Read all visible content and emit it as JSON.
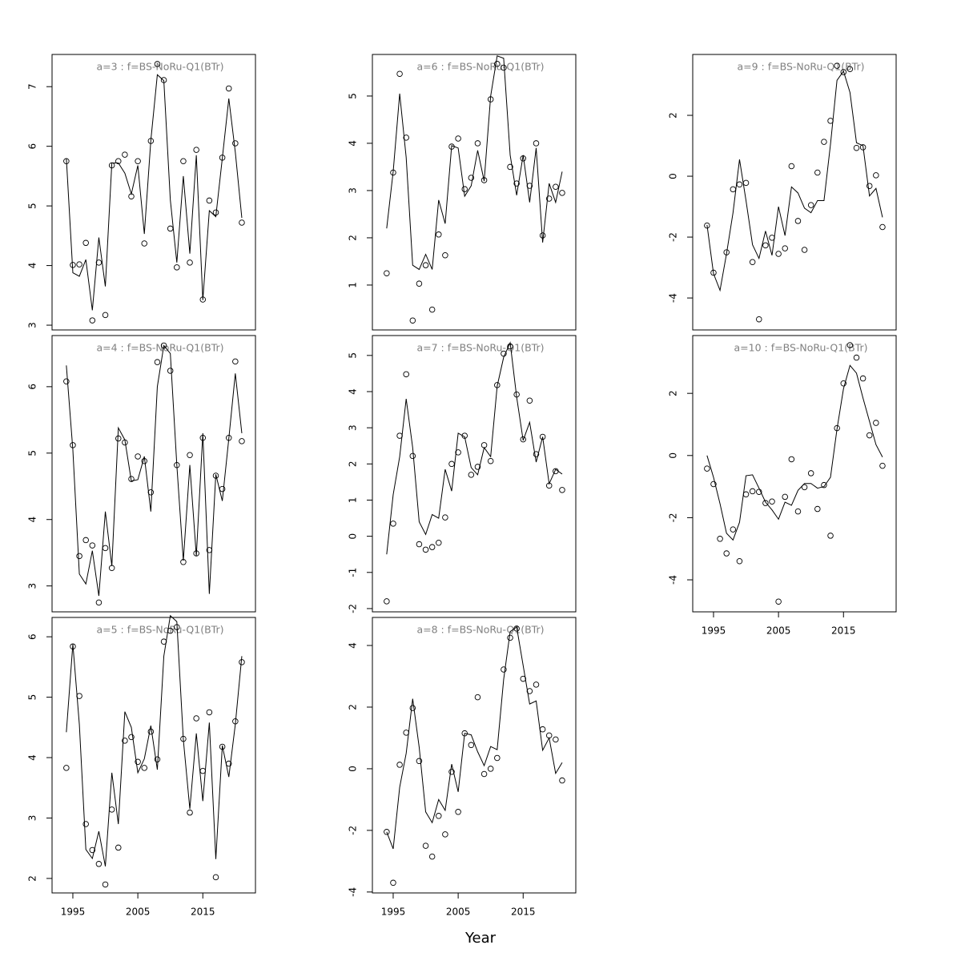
{
  "xlabel": "Year",
  "chart_data": [
    {
      "type": "line",
      "title": "a=3  :  f=BS-NoRu-Q1(BTr)",
      "x": [
        1994,
        1995,
        1996,
        1997,
        1998,
        1999,
        2000,
        2001,
        2002,
        2003,
        2004,
        2005,
        2006,
        2007,
        2008,
        2009,
        2010,
        2011,
        2012,
        2013,
        2014,
        2015,
        2016,
        2017,
        2018,
        2019,
        2020,
        2021
      ],
      "xlim": [
        1991.8,
        2023.1
      ],
      "ylim": [
        2.92,
        7.54
      ],
      "yticks": [
        3,
        4,
        5,
        6,
        7
      ],
      "series": [
        {
          "style": "points",
          "color": "#000000",
          "values": [
            5.75,
            4.01,
            4.02,
            4.38,
            3.08,
            4.05,
            3.17,
            5.68,
            5.75,
            5.86,
            5.16,
            5.75,
            4.37,
            6.09,
            7.38,
            7.11,
            4.62,
            3.97,
            5.75,
            4.05,
            5.94,
            3.43,
            5.09,
            4.89,
            5.81,
            6.97,
            6.05,
            4.72
          ]
        },
        {
          "style": "line",
          "color": "#000000",
          "values": [
            5.8,
            3.88,
            3.82,
            4.1,
            3.25,
            4.47,
            3.65,
            5.72,
            5.72,
            5.55,
            5.2,
            5.68,
            4.53,
            6.1,
            7.2,
            7.1,
            5.1,
            4.05,
            5.5,
            4.2,
            5.85,
            3.42,
            4.92,
            4.82,
            5.8,
            6.8,
            5.9,
            4.8
          ]
        }
      ]
    },
    {
      "type": "line",
      "title": "a=4  :  f=BS-NoRu-Q1(BTr)",
      "x": [
        1994,
        1995,
        1996,
        1997,
        1998,
        1999,
        2000,
        2001,
        2002,
        2003,
        2004,
        2005,
        2006,
        2007,
        2008,
        2009,
        2010,
        2011,
        2012,
        2013,
        2014,
        2015,
        2016,
        2017,
        2018,
        2019,
        2020,
        2021
      ],
      "xlim": [
        1991.8,
        2023.1
      ],
      "ylim": [
        2.61,
        6.77
      ],
      "yticks": [
        3,
        4,
        5,
        6
      ],
      "series": [
        {
          "style": "points",
          "color": "#000000",
          "values": [
            6.08,
            5.12,
            3.45,
            3.69,
            3.61,
            2.75,
            3.57,
            3.27,
            5.22,
            5.16,
            4.61,
            4.95,
            4.88,
            4.41,
            6.37,
            6.62,
            6.24,
            4.82,
            3.36,
            4.97,
            3.49,
            5.23,
            3.54,
            4.66,
            4.46,
            5.23,
            6.38,
            5.18
          ]
        },
        {
          "style": "line",
          "color": "#000000",
          "values": [
            6.32,
            5.05,
            3.18,
            3.03,
            3.53,
            2.85,
            4.12,
            3.3,
            5.38,
            5.2,
            4.58,
            4.6,
            4.95,
            4.12,
            6.0,
            6.62,
            6.5,
            4.82,
            3.38,
            4.82,
            3.45,
            5.3,
            2.88,
            4.68,
            4.28,
            5.22,
            6.2,
            5.3
          ]
        }
      ]
    },
    {
      "type": "line",
      "title": "a=5  :  f=BS-NoRu-Q1(BTr)",
      "x": [
        1994,
        1995,
        1996,
        1997,
        1998,
        1999,
        2000,
        2001,
        2002,
        2003,
        2004,
        2005,
        2006,
        2007,
        2008,
        2009,
        2010,
        2011,
        2012,
        2013,
        2014,
        2015,
        2016,
        2017,
        2018,
        2019,
        2020,
        2021
      ],
      "xlim": [
        1991.8,
        2023.1
      ],
      "ylim": [
        1.76,
        6.32
      ],
      "yticks": [
        2,
        3,
        4,
        5,
        6
      ],
      "xticks": [
        1995,
        2005,
        2015
      ],
      "series": [
        {
          "style": "points",
          "color": "#000000",
          "values": [
            3.83,
            5.84,
            5.02,
            2.9,
            2.47,
            2.24,
            1.9,
            3.14,
            2.51,
            4.28,
            4.34,
            3.93,
            3.83,
            4.43,
            3.97,
            5.92,
            6.1,
            6.16,
            4.31,
            3.09,
            4.65,
            3.78,
            4.75,
            2.02,
            4.18,
            3.9,
            4.6,
            5.58
          ]
        },
        {
          "style": "line",
          "color": "#000000",
          "values": [
            4.42,
            5.88,
            4.55,
            2.48,
            2.33,
            2.78,
            2.2,
            3.75,
            2.9,
            4.76,
            4.5,
            3.75,
            3.98,
            4.53,
            3.8,
            5.68,
            6.35,
            6.25,
            4.3,
            3.15,
            4.4,
            3.28,
            4.58,
            2.32,
            4.2,
            3.68,
            4.55,
            5.68
          ]
        }
      ]
    },
    {
      "type": "line",
      "title": "a=6  :  f=BS-NoRu-Q1(BTr)",
      "x": [
        1994,
        1995,
        1996,
        1997,
        1998,
        1999,
        2000,
        2001,
        2002,
        2003,
        2004,
        2005,
        2006,
        2007,
        2008,
        2009,
        2010,
        2011,
        2012,
        2013,
        2014,
        2015,
        2016,
        2017,
        2018,
        2019,
        2020,
        2021
      ],
      "xlim": [
        1991.8,
        2023.1
      ],
      "ylim": [
        0.05,
        5.88
      ],
      "yticks": [
        1,
        2,
        3,
        4,
        5
      ],
      "series": [
        {
          "style": "points",
          "color": "#000000",
          "values": [
            1.25,
            3.38,
            5.47,
            4.12,
            0.25,
            1.03,
            1.42,
            0.48,
            2.07,
            1.63,
            3.93,
            4.1,
            3.03,
            3.27,
            4.0,
            3.22,
            4.93,
            5.68,
            5.6,
            3.5,
            3.15,
            3.68,
            3.1,
            4.0,
            2.05,
            2.83,
            3.08,
            2.95
          ]
        },
        {
          "style": "line",
          "color": "#000000",
          "values": [
            2.2,
            3.4,
            5.05,
            3.7,
            1.42,
            1.33,
            1.65,
            1.33,
            2.8,
            2.3,
            3.95,
            3.9,
            2.88,
            3.1,
            3.85,
            3.2,
            5.0,
            5.85,
            5.8,
            3.75,
            2.9,
            3.75,
            2.75,
            3.9,
            1.9,
            3.15,
            2.75,
            3.4
          ]
        }
      ]
    },
    {
      "type": "line",
      "title": "a=7  :  f=BS-NoRu-Q1(BTr)",
      "x": [
        1994,
        1995,
        1996,
        1997,
        1998,
        1999,
        2000,
        2001,
        2002,
        2003,
        2004,
        2005,
        2006,
        2007,
        2008,
        2009,
        2010,
        2011,
        2012,
        2013,
        2014,
        2015,
        2016,
        2017,
        2018,
        2019,
        2020,
        2021
      ],
      "xlim": [
        1991.8,
        2023.1
      ],
      "ylim": [
        -2.09,
        5.55
      ],
      "yticks": [
        -2,
        -1,
        0,
        1,
        2,
        3,
        4,
        5
      ],
      "series": [
        {
          "style": "points",
          "color": "#000000",
          "values": [
            -1.8,
            0.35,
            2.78,
            4.48,
            2.22,
            -0.22,
            -0.37,
            -0.3,
            -0.18,
            0.52,
            2.0,
            2.32,
            2.78,
            1.7,
            1.92,
            2.52,
            2.08,
            4.18,
            5.05,
            5.25,
            3.92,
            2.68,
            3.75,
            2.27,
            2.75,
            1.4,
            1.8,
            1.28
          ]
        },
        {
          "style": "line",
          "color": "#000000",
          "values": [
            -0.5,
            1.15,
            2.2,
            3.8,
            2.45,
            0.4,
            0.05,
            0.6,
            0.5,
            1.85,
            1.25,
            2.85,
            2.75,
            1.9,
            1.7,
            2.45,
            2.2,
            4.15,
            4.95,
            5.35,
            3.85,
            2.65,
            3.15,
            2.05,
            2.75,
            1.45,
            1.85,
            1.72
          ]
        }
      ]
    },
    {
      "type": "line",
      "title": "a=8  :  f=BS-NoRu-Q1(BTr)",
      "x": [
        1994,
        1995,
        1996,
        1997,
        1998,
        1999,
        2000,
        2001,
        2002,
        2003,
        2004,
        2005,
        2006,
        2007,
        2008,
        2009,
        2010,
        2011,
        2012,
        2013,
        2014,
        2015,
        2016,
        2017,
        2018,
        2019,
        2020,
        2021
      ],
      "xlim": [
        1991.8,
        2023.1
      ],
      "ylim": [
        -4.03,
        4.91
      ],
      "yticks": [
        -4,
        -2,
        0,
        2,
        4
      ],
      "xticks": [
        1995,
        2005,
        2015
      ],
      "series": [
        {
          "style": "points",
          "color": "#000000",
          "values": [
            -2.05,
            -3.7,
            0.13,
            1.17,
            1.97,
            0.25,
            -2.5,
            -2.85,
            -1.53,
            -2.13,
            -0.1,
            -1.4,
            1.15,
            0.77,
            2.32,
            -0.17,
            0.0,
            0.35,
            3.22,
            4.25,
            4.55,
            2.92,
            2.52,
            2.73,
            1.28,
            1.08,
            0.95,
            -0.38
          ]
        },
        {
          "style": "line",
          "color": "#000000",
          "values": [
            -2.05,
            -2.6,
            -0.6,
            0.5,
            2.27,
            0.7,
            -1.4,
            -1.75,
            -1.0,
            -1.35,
            0.15,
            -0.75,
            1.15,
            1.1,
            0.55,
            0.1,
            0.72,
            0.62,
            2.9,
            4.45,
            4.6,
            3.35,
            2.1,
            2.2,
            0.6,
            1.0,
            -0.15,
            0.2
          ]
        }
      ]
    },
    {
      "type": "line",
      "title": "a=9  :  f=BS-NoRu-Q1(BTr)",
      "x": [
        1994,
        1995,
        1996,
        1997,
        1998,
        1999,
        2000,
        2001,
        2002,
        2003,
        2004,
        2005,
        2006,
        2007,
        2008,
        2009,
        2010,
        2011,
        2012,
        2013,
        2014,
        2015,
        2016,
        2017,
        2018,
        2019,
        2020,
        2021
      ],
      "xlim": [
        1991.8,
        2023.1
      ],
      "ylim": [
        -5.05,
        4.0
      ],
      "yticks": [
        -4,
        -2,
        0,
        2
      ],
      "series": [
        {
          "style": "points",
          "color": "#000000",
          "values": [
            -1.62,
            -3.17,
            null,
            -2.5,
            -0.43,
            -0.27,
            -0.22,
            -2.82,
            -4.7,
            -2.27,
            -2.02,
            -2.55,
            -2.37,
            0.33,
            -1.47,
            -2.42,
            -0.95,
            0.12,
            1.13,
            1.82,
            3.63,
            3.42,
            3.52,
            0.93,
            0.95,
            -0.32,
            0.03,
            -1.67
          ]
        },
        {
          "style": "line",
          "color": "#000000",
          "values": [
            -1.6,
            -3.2,
            -3.75,
            -2.55,
            -1.2,
            0.55,
            -0.8,
            -2.25,
            -2.7,
            -1.8,
            -2.6,
            -1.0,
            -1.95,
            -0.35,
            -0.55,
            -1.05,
            -1.2,
            -0.8,
            -0.8,
            1.05,
            3.15,
            3.45,
            2.75,
            1.1,
            1.0,
            -0.65,
            -0.4,
            -1.35
          ]
        }
      ]
    },
    {
      "type": "line",
      "title": "a=10  :  f=BS-NoRu-Q1(BTr)",
      "x": [
        1994,
        1995,
        1996,
        1997,
        1998,
        1999,
        2000,
        2001,
        2002,
        2003,
        2004,
        2005,
        2006,
        2007,
        2008,
        2009,
        2010,
        2011,
        2012,
        2013,
        2014,
        2015,
        2016,
        2017,
        2018,
        2019,
        2020,
        2021
      ],
      "xlim": [
        1991.8,
        2023.1
      ],
      "ylim": [
        -5.03,
        3.86
      ],
      "yticks": [
        -4,
        -2,
        0,
        2
      ],
      "xticks": [
        1995,
        2005,
        2015
      ],
      "series": [
        {
          "style": "points",
          "color": "#000000",
          "values": [
            -0.42,
            -0.92,
            -2.68,
            -3.15,
            -2.38,
            -3.4,
            -1.25,
            -1.15,
            -1.17,
            -1.53,
            -1.48,
            -4.7,
            -1.33,
            -0.12,
            -1.8,
            -1.02,
            -0.57,
            -1.72,
            -0.95,
            -2.58,
            0.88,
            2.32,
            3.55,
            3.15,
            2.48,
            0.65,
            1.05,
            -0.33
          ]
        },
        {
          "style": "line",
          "color": "#000000",
          "values": [
            0.0,
            -0.7,
            -1.55,
            -2.5,
            -2.72,
            -2.15,
            -0.65,
            -0.62,
            -1.05,
            -1.5,
            -1.75,
            -2.05,
            -1.5,
            -1.6,
            -1.12,
            -0.9,
            -0.9,
            -1.05,
            -1.0,
            -0.7,
            0.85,
            2.15,
            2.9,
            2.65,
            1.85,
            1.1,
            0.35,
            -0.05
          ]
        }
      ]
    }
  ]
}
